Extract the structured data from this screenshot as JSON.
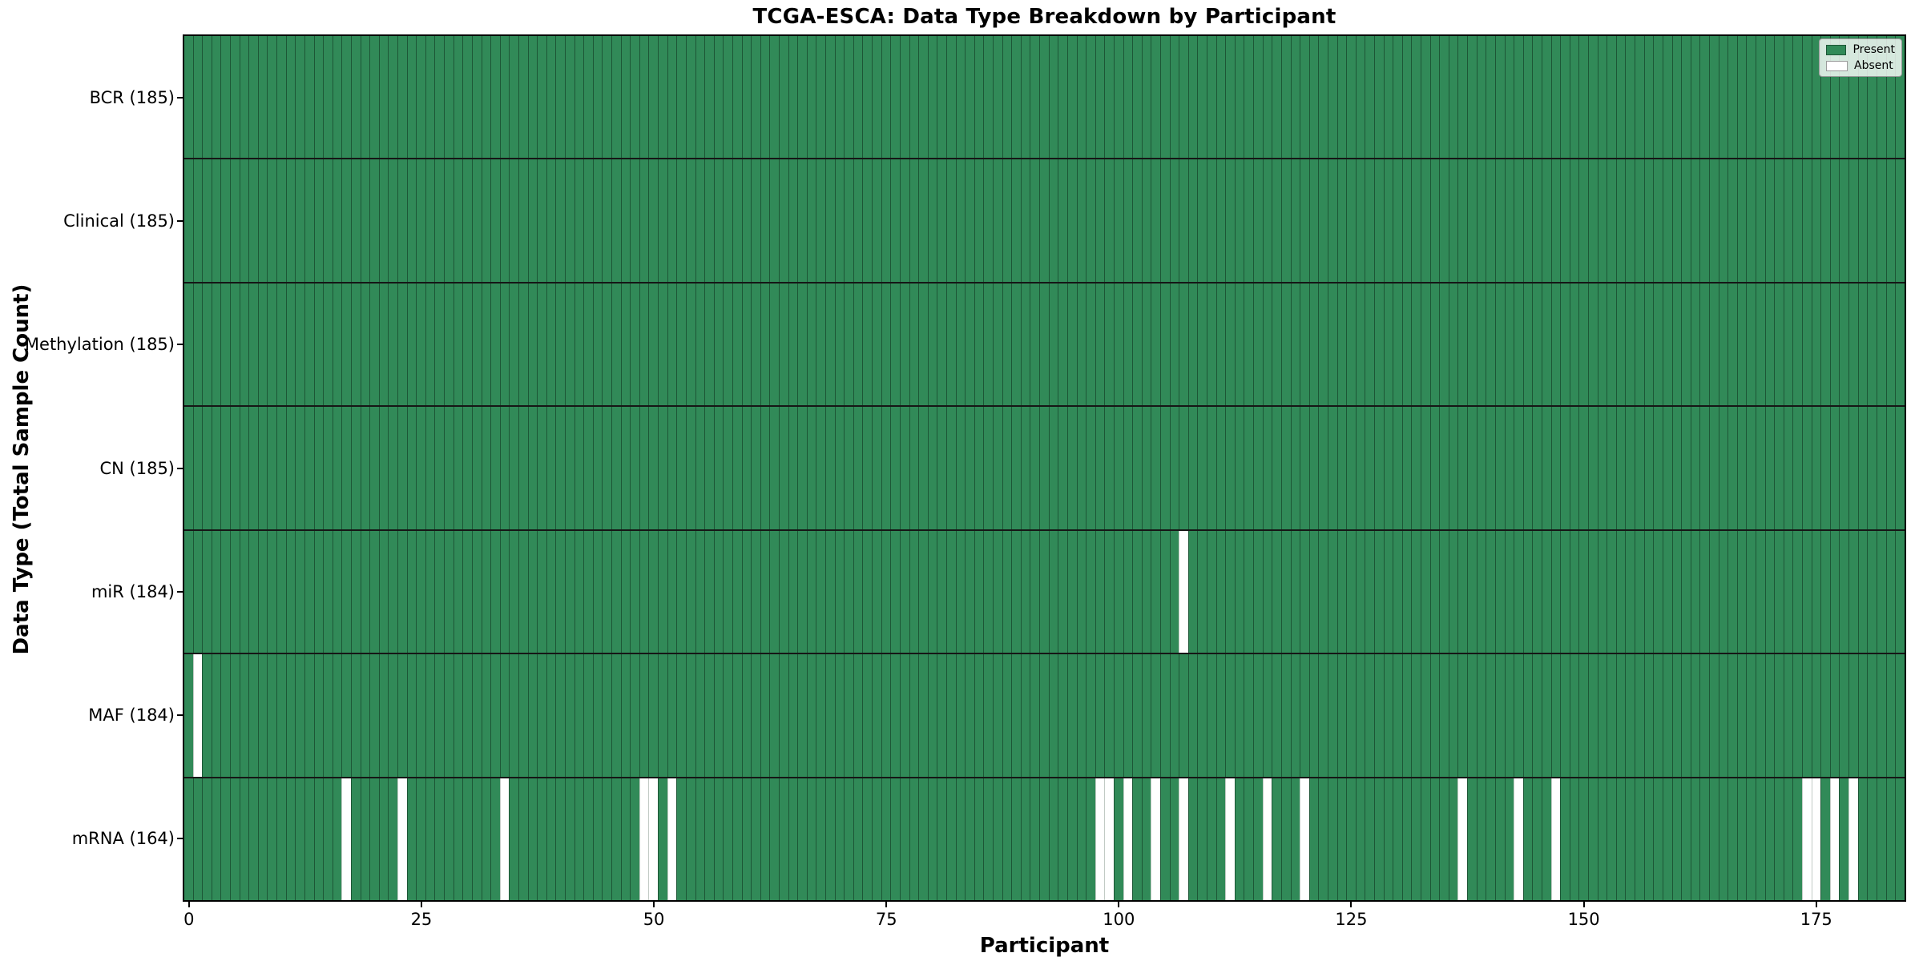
{
  "chart_data": {
    "type": "heatmap",
    "title": "TCGA-ESCA: Data Type Breakdown by Participant",
    "xlabel": "Participant",
    "ylabel": "Data Type (Total Sample Count)",
    "n_participants": 185,
    "x_ticks": [
      0,
      25,
      50,
      75,
      100,
      125,
      150,
      175
    ],
    "xlim": [
      -0.5,
      184.5
    ],
    "grid": false,
    "legend_position": "upper right",
    "rows": [
      {
        "label": "BCR (185)",
        "data_type": "BCR",
        "present_count": 185,
        "absent_participants": []
      },
      {
        "label": "Clinical (185)",
        "data_type": "Clinical",
        "present_count": 185,
        "absent_participants": []
      },
      {
        "label": "Methylation (185)",
        "data_type": "Methylation",
        "present_count": 185,
        "absent_participants": []
      },
      {
        "label": "CN (185)",
        "data_type": "CN",
        "present_count": 185,
        "absent_participants": []
      },
      {
        "label": "miR (184)",
        "data_type": "miR",
        "present_count": 184,
        "absent_participants": [
          107
        ]
      },
      {
        "label": "MAF (184)",
        "data_type": "MAF",
        "present_count": 184,
        "absent_participants": [
          1
        ]
      },
      {
        "label": "mRNA (164)",
        "data_type": "mRNA",
        "present_count": 164,
        "absent_participants": [
          17,
          23,
          34,
          49,
          50,
          52,
          98,
          99,
          101,
          104,
          107,
          112,
          116,
          120,
          137,
          143,
          147,
          174,
          175,
          177,
          179
        ]
      }
    ],
    "legend": [
      {
        "label": "Present",
        "color": "#318a58"
      },
      {
        "label": "Absent",
        "color": "#ffffff"
      }
    ],
    "colors": {
      "present": "#318a58",
      "absent": "#ffffff",
      "bar_edge": "#1d5636",
      "row_separator": "#161616",
      "frame": "#000000"
    }
  }
}
